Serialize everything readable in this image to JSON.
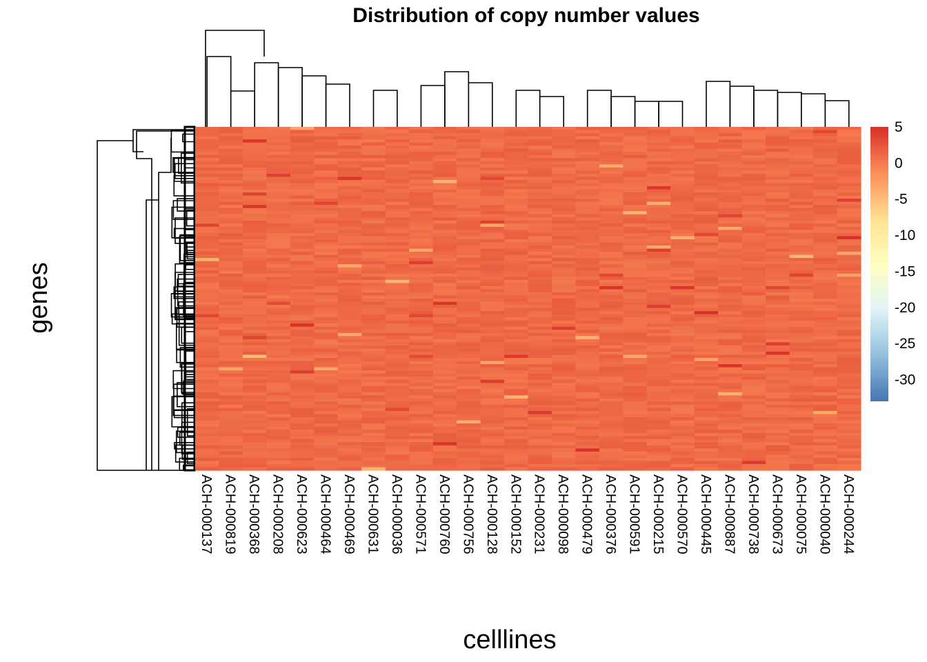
{
  "chart_data": {
    "type": "heatmap",
    "title": "Distribution of copy number values",
    "xlabel": "celllines",
    "ylabel": "genes",
    "columns": [
      "ACH-000137",
      "ACH-000819",
      "ACH-000368",
      "ACH-000208",
      "ACH-000623",
      "ACH-000464",
      "ACH-000469",
      "ACH-000631",
      "ACH-000036",
      "ACH-000571",
      "ACH-000760",
      "ACH-000756",
      "ACH-000128",
      "ACH-000152",
      "ACH-000231",
      "ACH-000098",
      "ACH-000479",
      "ACH-000376",
      "ACH-000591",
      "ACH-000215",
      "ACH-000570",
      "ACH-000445",
      "ACH-000887",
      "ACH-000738",
      "ACH-000673",
      "ACH-000075",
      "ACH-000040",
      "ACH-000244"
    ],
    "typical_value": 1,
    "value_range_shown": [
      -33,
      5
    ],
    "legend": {
      "position": "right",
      "ticks": [
        "5",
        "0",
        "-5",
        "-10",
        "-15",
        "-20",
        "-25",
        "-30"
      ],
      "tick_values": [
        5,
        0,
        -5,
        -10,
        -15,
        -20,
        -25,
        -30
      ],
      "colors": [
        "#4575b4",
        "#91bfdb",
        "#e0f3f8",
        "#ffffbf",
        "#fee090",
        "#fc8d59",
        "#d73027"
      ]
    },
    "row_dendrogram": true,
    "column_dendrogram": true
  }
}
